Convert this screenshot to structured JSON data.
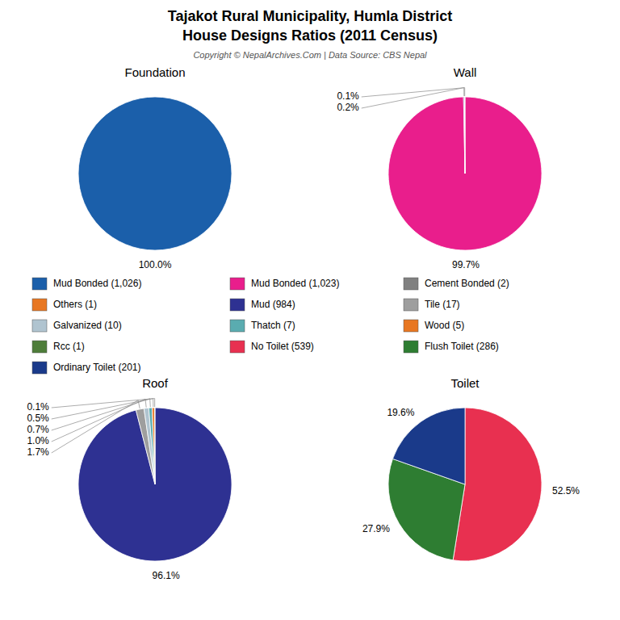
{
  "title": "Tajakot Rural Municipality, Humla District",
  "subtitle": "House Designs Ratios (2011 Census)",
  "annotations": [
    "Copyright © NepalArchives.Com | Data Source: CBS Nepal"
  ],
  "chart_data": [
    {
      "type": "pie",
      "title": "Foundation",
      "values": [
        100.0
      ],
      "value_labels": [
        "100.0%"
      ],
      "colors": [
        "#1b5faa"
      ],
      "data_labels": true
    },
    {
      "type": "pie",
      "title": "Wall",
      "values": [
        99.7,
        0.2,
        0.1
      ],
      "value_labels": [
        "99.7%",
        "0.2%",
        "0.1%"
      ],
      "colors": [
        "#e91e8c",
        "#3f3f99",
        "#cccccc"
      ],
      "data_labels": true
    },
    {
      "type": "pie",
      "title": "Roof",
      "values": [
        96.1,
        1.7,
        1.0,
        0.7,
        0.5,
        0.1
      ],
      "value_labels": [
        "96.1%",
        "1.7%",
        "1.0%",
        "0.7%",
        "0.5%",
        "0.1%"
      ],
      "colors": [
        "#2e3192",
        "#9e9e9e",
        "#b0c4d0",
        "#5aacb0",
        "#e87722",
        "#4e7d3a"
      ],
      "data_labels": true
    },
    {
      "type": "pie",
      "title": "Toilet",
      "values": [
        52.5,
        27.9,
        19.6
      ],
      "value_labels": [
        "52.5%",
        "27.9%",
        "19.6%"
      ],
      "colors": [
        "#e83050",
        "#2e7d32",
        "#1a3a8a"
      ],
      "data_labels": true
    }
  ],
  "legend_entries": [
    {
      "name": "Mud Bonded (1,026)",
      "color": "#1b5faa"
    },
    {
      "name": "Others (1)",
      "color": "#e87722"
    },
    {
      "name": "Galvanized (10)",
      "color": "#b0c4d0"
    },
    {
      "name": "Rcc (1)",
      "color": "#4e7d3a"
    },
    {
      "name": "Ordinary Toilet (201)",
      "color": "#1a3a8a"
    },
    {
      "name": "Mud Bonded (1,023)",
      "color": "#e91e8c"
    },
    {
      "name": "Mud (984)",
      "color": "#2e3192"
    },
    {
      "name": "Thatch (7)",
      "color": "#5aacb0"
    },
    {
      "name": "No Toilet (539)",
      "color": "#e83050"
    },
    {
      "name": "Cement Bonded (2)",
      "color": "#808080"
    },
    {
      "name": "Tile (17)",
      "color": "#9e9e9e"
    },
    {
      "name": "Wood (5)",
      "color": "#e87722"
    },
    {
      "name": "Flush Toilet (286)",
      "color": "#2e7d32"
    }
  ]
}
